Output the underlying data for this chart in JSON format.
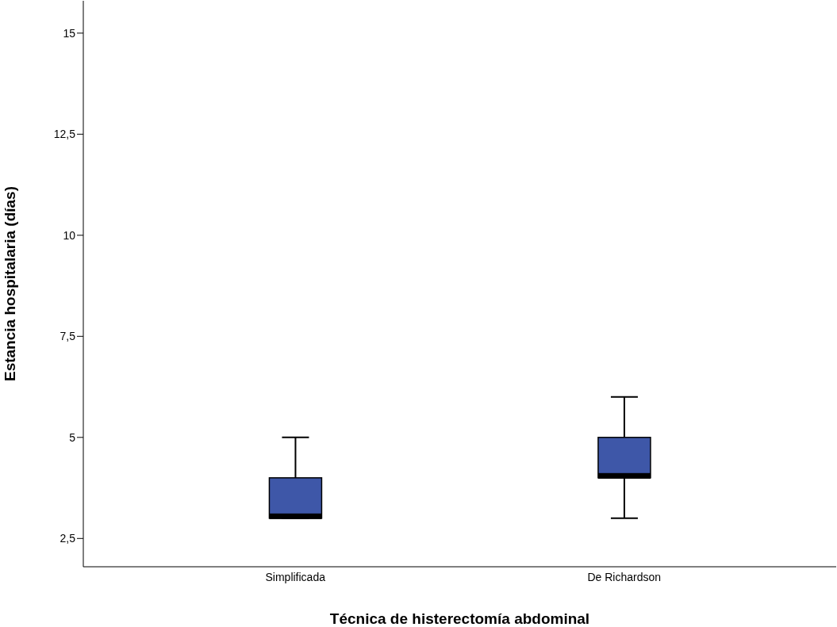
{
  "chart_data": {
    "type": "box",
    "xlabel": "Técnica de histerectomía abdominal",
    "ylabel": "Estancia hospitalaria (días)",
    "categories": [
      "Simplificada",
      "De Richardson"
    ],
    "boxes": [
      {
        "low": 3,
        "q1": 3,
        "median": 3,
        "q3": 4,
        "high": 5
      },
      {
        "low": 3,
        "q1": 4,
        "median": 4,
        "q3": 5,
        "high": 6
      }
    ],
    "color": "#3e57a8",
    "ylim": [
      1.8,
      15.8
    ],
    "yticks": [
      {
        "value": 2.5,
        "label": "2,5"
      },
      {
        "value": 5,
        "label": "5"
      },
      {
        "value": 7.5,
        "label": "7,5"
      },
      {
        "value": 10,
        "label": "10"
      },
      {
        "value": 12.5,
        "label": "12,5"
      },
      {
        "value": 15,
        "label": "15"
      }
    ]
  }
}
